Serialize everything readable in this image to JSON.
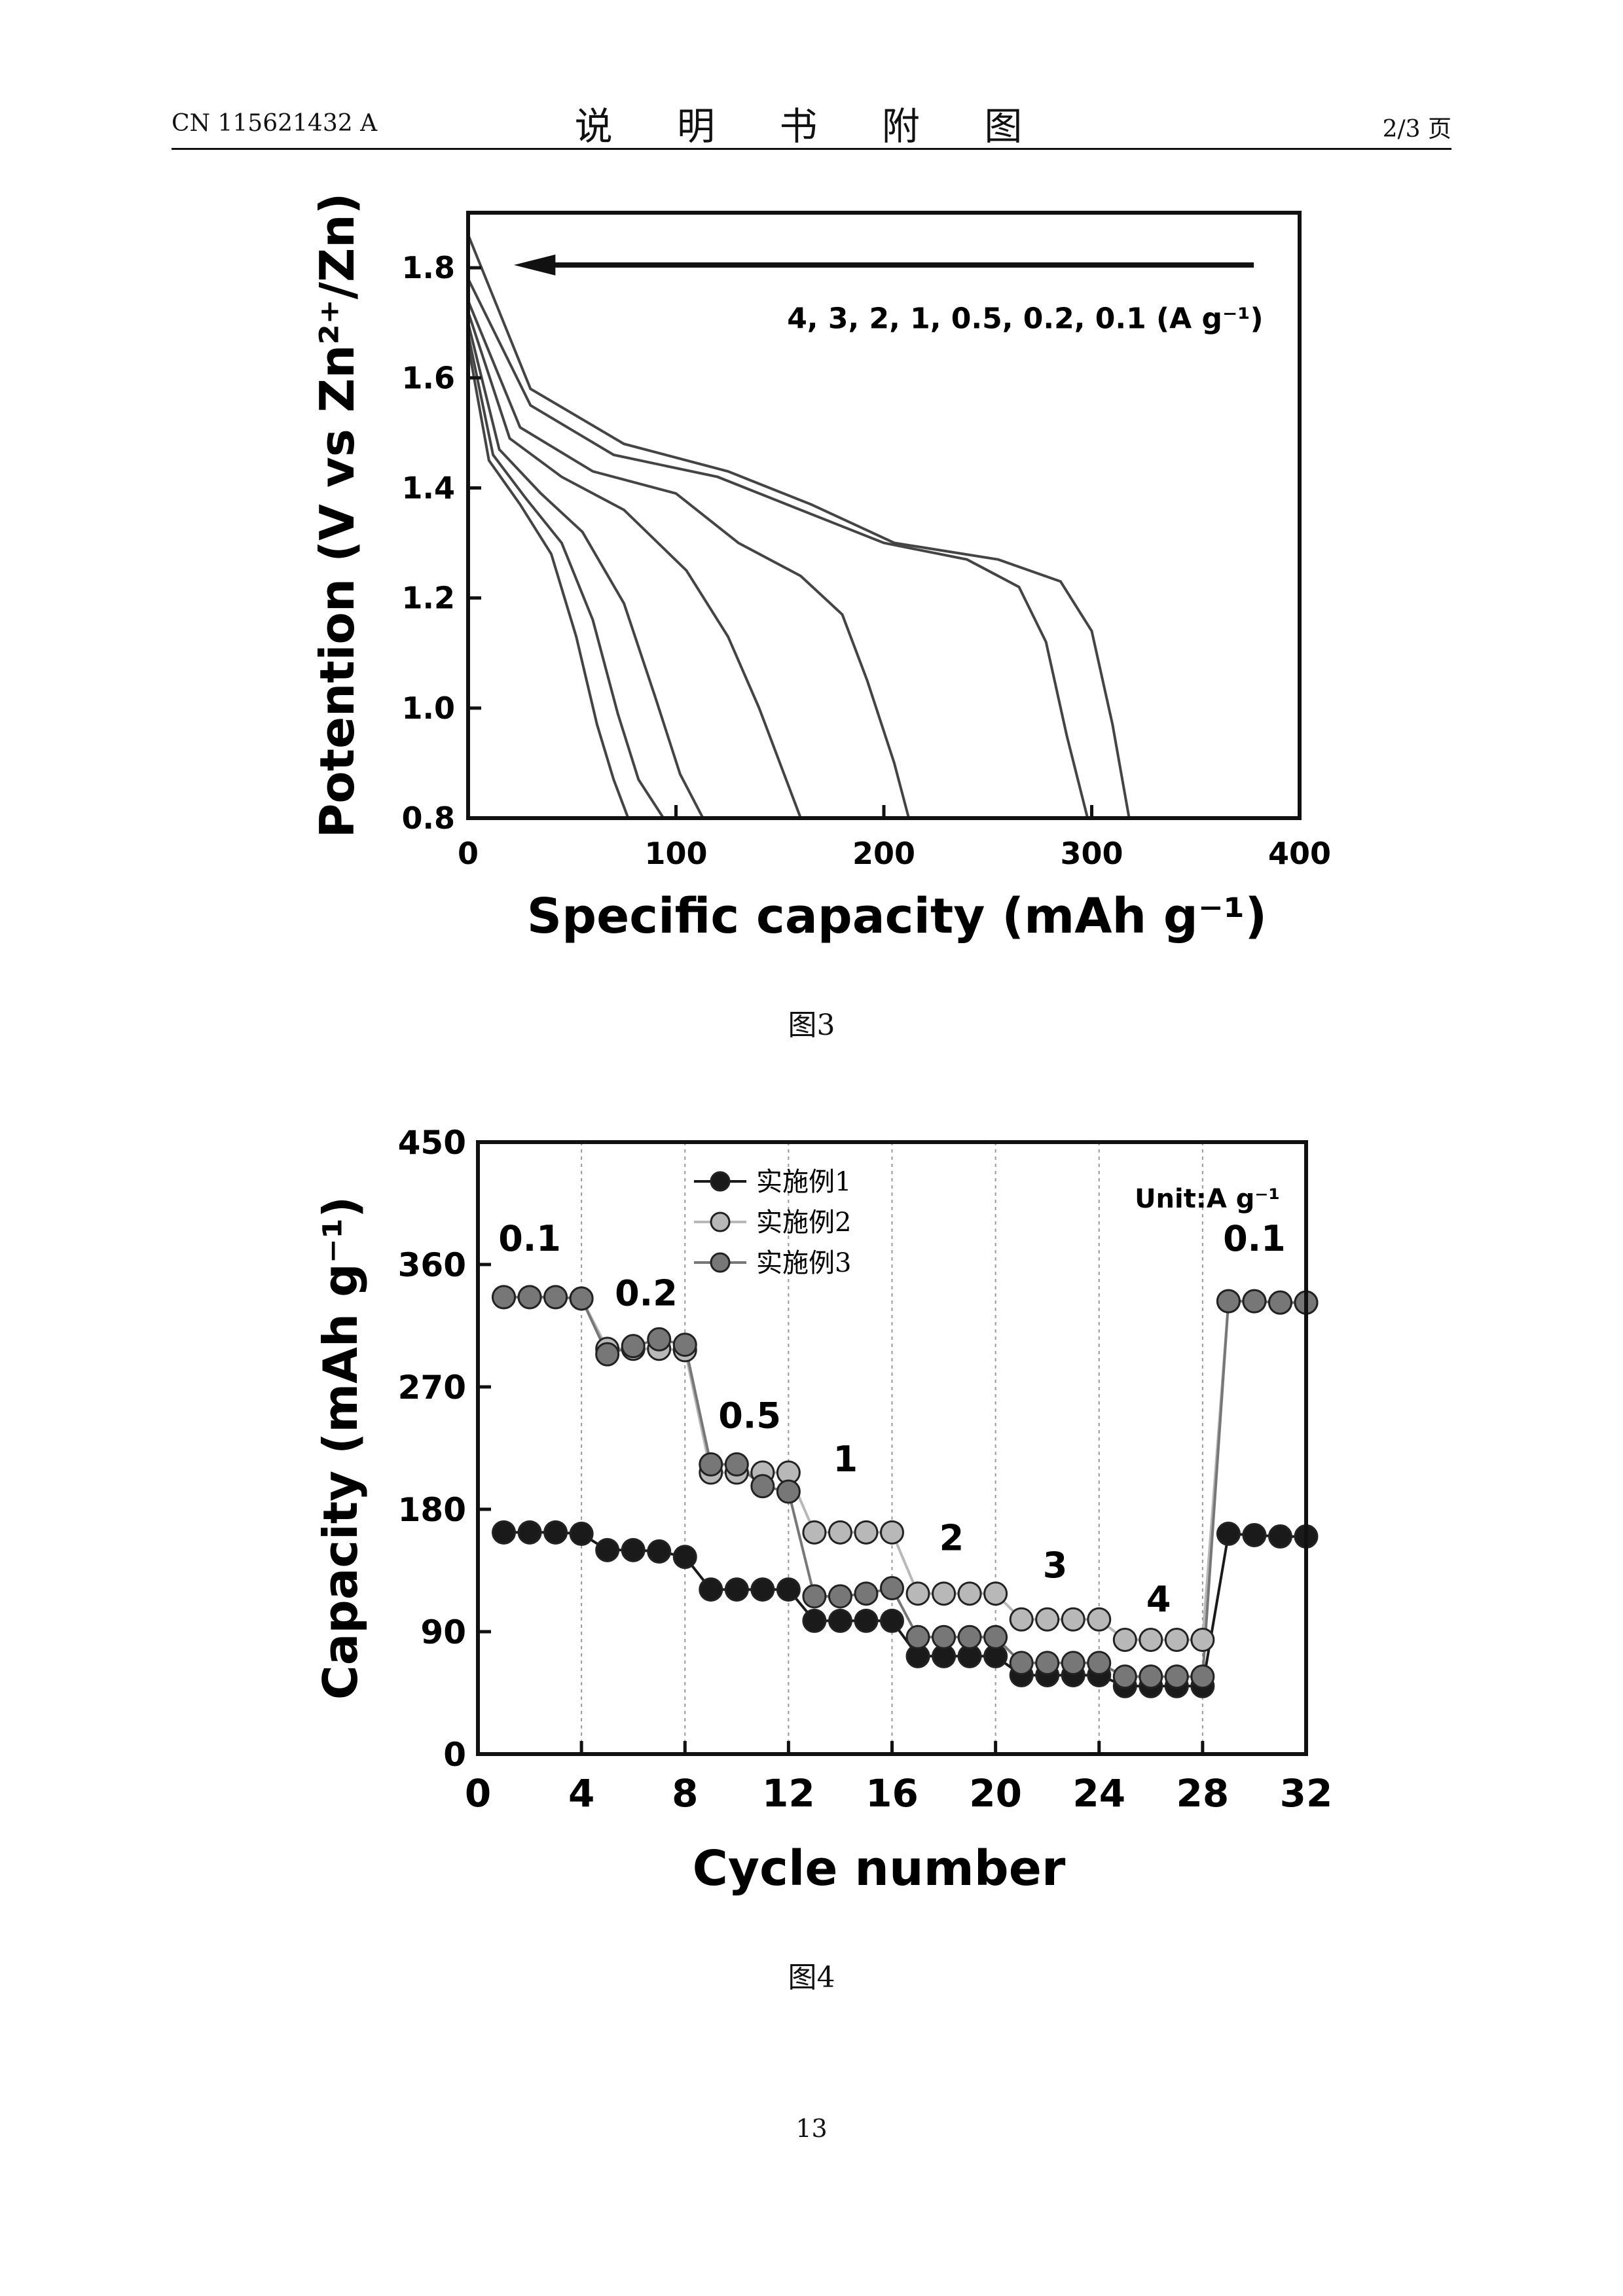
{
  "header": {
    "left": "CN 115621432 A",
    "center": "说 明 书 附 图",
    "right": "2/3 页"
  },
  "figure3": {
    "caption": "图3"
  },
  "figure4": {
    "caption": "图4"
  },
  "page_number": "13",
  "chart_data": [
    {
      "type": "line",
      "xlabel": "Specific capacity (mAh g⁻¹)",
      "ylabel": "Potention (V vs Zn²⁺/Zn)",
      "xlim": [
        0,
        400
      ],
      "ylim": [
        0.8,
        1.9
      ],
      "xticks": [
        "0",
        "100",
        "200",
        "300",
        "400"
      ],
      "yticks": [
        "0.8",
        "1.0",
        "1.2",
        "1.4",
        "1.6",
        "1.8"
      ],
      "annotation": "4, 3, 2, 1, 0.5, 0.2, 0.1 (A g⁻¹)",
      "arrow_direction": "left",
      "series": [
        {
          "rate": 4,
          "points": [
            [
              0,
              1.66
            ],
            [
              10,
              1.45
            ],
            [
              25,
              1.37
            ],
            [
              40,
              1.28
            ],
            [
              52,
              1.13
            ],
            [
              62,
              0.97
            ],
            [
              70,
              0.87
            ],
            [
              77,
              0.8
            ]
          ]
        },
        {
          "rate": 3,
          "points": [
            [
              0,
              1.68
            ],
            [
              12,
              1.46
            ],
            [
              28,
              1.38
            ],
            [
              45,
              1.3
            ],
            [
              60,
              1.16
            ],
            [
              72,
              0.99
            ],
            [
              82,
              0.87
            ],
            [
              94,
              0.8
            ]
          ]
        },
        {
          "rate": 2,
          "points": [
            [
              0,
              1.7
            ],
            [
              15,
              1.47
            ],
            [
              35,
              1.39
            ],
            [
              55,
              1.32
            ],
            [
              75,
              1.19
            ],
            [
              90,
              1.02
            ],
            [
              102,
              0.88
            ],
            [
              113,
              0.8
            ]
          ]
        },
        {
          "rate": 1,
          "points": [
            [
              0,
              1.72
            ],
            [
              20,
              1.49
            ],
            [
              45,
              1.42
            ],
            [
              75,
              1.36
            ],
            [
              105,
              1.25
            ],
            [
              125,
              1.13
            ],
            [
              140,
              1.0
            ],
            [
              152,
              0.88
            ],
            [
              160,
              0.8
            ]
          ]
        },
        {
          "rate": 0.5,
          "points": [
            [
              0,
              1.74
            ],
            [
              25,
              1.51
            ],
            [
              60,
              1.43
            ],
            [
              100,
              1.39
            ],
            [
              130,
              1.3
            ],
            [
              160,
              1.24
            ],
            [
              180,
              1.17
            ],
            [
              192,
              1.05
            ],
            [
              205,
              0.9
            ],
            [
              212,
              0.8
            ]
          ]
        },
        {
          "rate": 0.2,
          "points": [
            [
              0,
              1.78
            ],
            [
              30,
              1.55
            ],
            [
              70,
              1.46
            ],
            [
              120,
              1.42
            ],
            [
              160,
              1.36
            ],
            [
              200,
              1.3
            ],
            [
              240,
              1.27
            ],
            [
              265,
              1.22
            ],
            [
              278,
              1.12
            ],
            [
              288,
              0.95
            ],
            [
              298,
              0.8
            ]
          ]
        },
        {
          "rate": 0.1,
          "points": [
            [
              0,
              1.86
            ],
            [
              30,
              1.58
            ],
            [
              75,
              1.48
            ],
            [
              125,
              1.43
            ],
            [
              165,
              1.37
            ],
            [
              205,
              1.3
            ],
            [
              255,
              1.27
            ],
            [
              285,
              1.23
            ],
            [
              300,
              1.14
            ],
            [
              310,
              0.97
            ],
            [
              318,
              0.8
            ]
          ]
        }
      ]
    },
    {
      "type": "scatter",
      "xlabel": "Cycle number",
      "ylabel": "Capacity (mAh g⁻¹)",
      "xlim": [
        0,
        32
      ],
      "ylim": [
        0,
        450
      ],
      "xticks": [
        "0",
        "4",
        "8",
        "12",
        "16",
        "20",
        "24",
        "28",
        "32"
      ],
      "yticks": [
        "0",
        "90",
        "180",
        "270",
        "360",
        "450"
      ],
      "unit_label": "Unit:A g⁻¹",
      "legend_position": "top-left",
      "vgrid": [
        4,
        8,
        12,
        16,
        20,
        24,
        28
      ],
      "rate_labels": [
        {
          "text": "0.1",
          "x": 2,
          "y": 370
        },
        {
          "text": "0.2",
          "x": 6.5,
          "y": 330
        },
        {
          "text": "0.5",
          "x": 10.5,
          "y": 240
        },
        {
          "text": "1",
          "x": 14.2,
          "y": 208
        },
        {
          "text": "2",
          "x": 18.3,
          "y": 150
        },
        {
          "text": "3",
          "x": 22.3,
          "y": 130
        },
        {
          "text": "4",
          "x": 26.3,
          "y": 105
        },
        {
          "text": "0.1",
          "x": 30,
          "y": 370
        }
      ],
      "x": [
        1,
        2,
        3,
        4,
        5,
        6,
        7,
        8,
        9,
        10,
        11,
        12,
        13,
        14,
        15,
        16,
        17,
        18,
        19,
        20,
        21,
        22,
        23,
        24,
        25,
        26,
        27,
        28,
        29,
        30,
        31,
        32
      ],
      "series": [
        {
          "name": "实施例1",
          "color": "#1a1a1a",
          "values": [
            163,
            163,
            163,
            162,
            150,
            150,
            149,
            145,
            121,
            121,
            121,
            121,
            98,
            98,
            98,
            98,
            72,
            72,
            72,
            72,
            58,
            58,
            58,
            58,
            50,
            50,
            50,
            50,
            162,
            161,
            160,
            160
          ]
        },
        {
          "name": "实施例2",
          "color": "#b8b8b8",
          "values": [
            336,
            336,
            336,
            335,
            298,
            298,
            298,
            297,
            207,
            207,
            207,
            207,
            163,
            163,
            163,
            163,
            118,
            118,
            118,
            118,
            99,
            99,
            99,
            99,
            84,
            84,
            84,
            84,
            333,
            333,
            332,
            332
          ]
        },
        {
          "name": "实施例3",
          "color": "#777777",
          "values": [
            336,
            336,
            336,
            335,
            294,
            300,
            305,
            301,
            213,
            213,
            197,
            193,
            116,
            116,
            118,
            122,
            86,
            86,
            86,
            86,
            67,
            67,
            67,
            67,
            57,
            57,
            57,
            57,
            333,
            333,
            332,
            332
          ]
        }
      ]
    }
  ]
}
